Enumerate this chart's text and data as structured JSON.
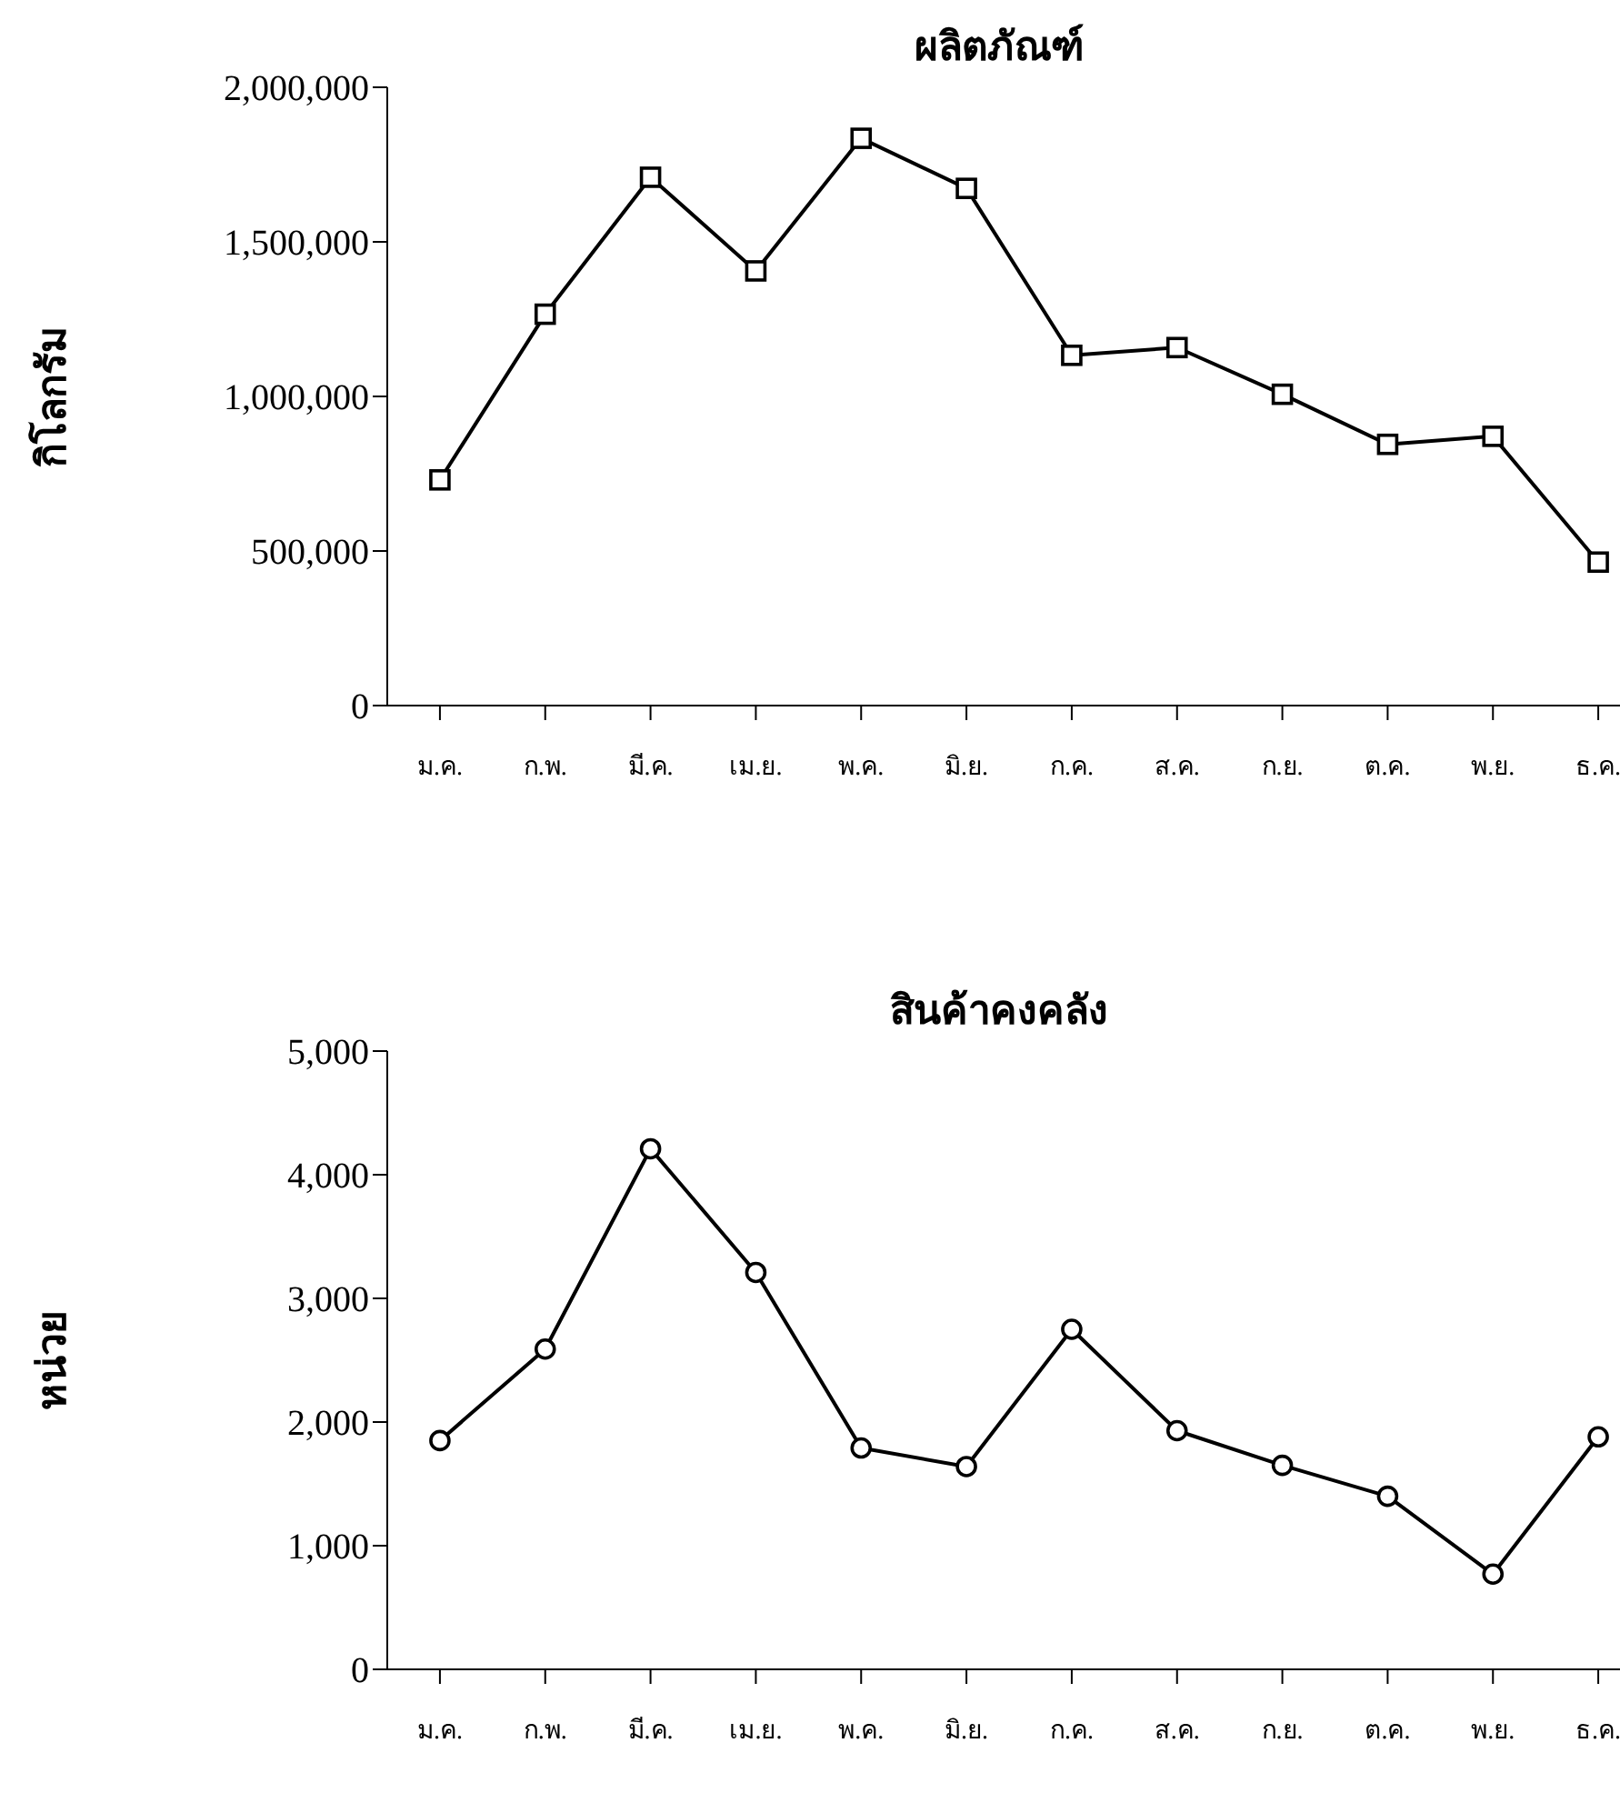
{
  "chart_data": [
    {
      "type": "line",
      "title": "ผลิตภัณฑ์",
      "ylabel": "กิโลกรัม",
      "categories": [
        "ม.ค.",
        "ก.พ.",
        "มี.ค.",
        "เม.ย.",
        "พ.ค.",
        "มิ.ย.",
        "ก.ค.",
        "ส.ค.",
        "ก.ย.",
        "ต.ค.",
        "พ.ย.",
        "ธ.ค."
      ],
      "series": [
        {
          "color": "#000000",
          "values": [
            730000,
            1266000,
            1709000,
            1406000,
            1835000,
            1673000,
            1133000,
            1158000,
            1007000,
            845000,
            871000,
            464000
          ]
        }
      ],
      "ylim": [
        0,
        2000000
      ],
      "yticks": [
        {
          "value": 0,
          "label": "0"
        },
        {
          "value": 500000,
          "label": "500,000"
        },
        {
          "value": 1000000,
          "label": "1,000,000"
        },
        {
          "value": 1500000,
          "label": "1,500,000"
        },
        {
          "value": 2000000,
          "label": "2,000,000"
        }
      ],
      "marker": "square",
      "line_style": "solid"
    },
    {
      "type": "line",
      "title": "สินค้าคงคลัง",
      "ylabel": "หน่วย",
      "categories": [
        "ม.ค.",
        "ก.พ.",
        "มี.ค.",
        "เม.ย.",
        "พ.ค.",
        "มิ.ย.",
        "ก.ค.",
        "ส.ค.",
        "ก.ย.",
        "ต.ค.",
        "พ.ย.",
        "ธ.ค."
      ],
      "series": [
        {
          "color": "#000000",
          "values": [
            1850,
            2590,
            4210,
            3210,
            1790,
            1640,
            2750,
            1930,
            1650,
            1400,
            770,
            1880
          ]
        }
      ],
      "ylim": [
        0,
        5000
      ],
      "yticks": [
        {
          "value": 0,
          "label": "0"
        },
        {
          "value": 1000,
          "label": "1,000"
        },
        {
          "value": 2000,
          "label": "2,000"
        },
        {
          "value": 3000,
          "label": "3,000"
        },
        {
          "value": 4000,
          "label": "4,000"
        },
        {
          "value": 5000,
          "label": "5,000"
        }
      ],
      "marker": "circle",
      "line_style": "solid"
    }
  ]
}
